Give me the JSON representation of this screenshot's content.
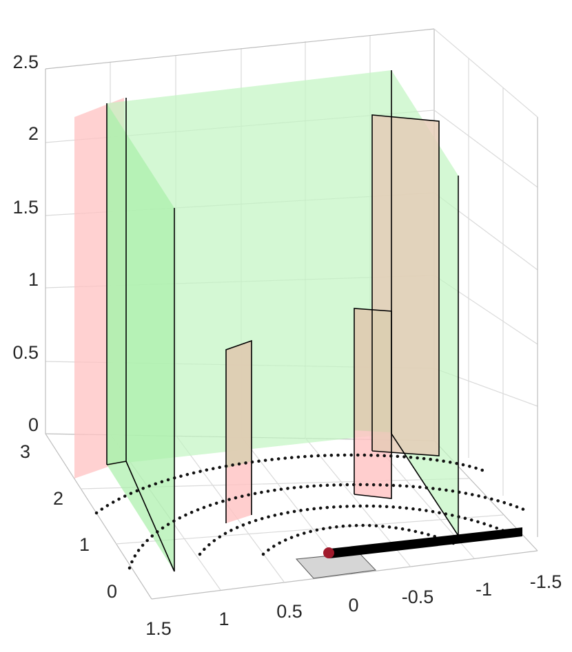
{
  "chart_data": {
    "type": "3d-scene",
    "title": "",
    "xlabel": "",
    "ylabel": "",
    "zlabel": "",
    "x_ticks": [
      "1.5",
      "1",
      "0.5",
      "0",
      "-0.5",
      "-1",
      "-1.5"
    ],
    "y_ticks": [
      "0",
      "1",
      "2",
      "3"
    ],
    "z_ticks": [
      "0",
      "0.5",
      "1",
      "1.5",
      "2",
      "2.5"
    ],
    "xlim": [
      -1.5,
      1.5
    ],
    "ylim": [
      0,
      3
    ],
    "zlim": [
      0,
      2.5
    ],
    "grid": true,
    "colors": {
      "green_wall": "#c2f5c2",
      "red_wall": "#ffc2c2",
      "tan_panel": "#d9cfb0",
      "gray_patch": "#d6d6d6",
      "path": "#000000",
      "marker": "#a01a2c"
    }
  }
}
